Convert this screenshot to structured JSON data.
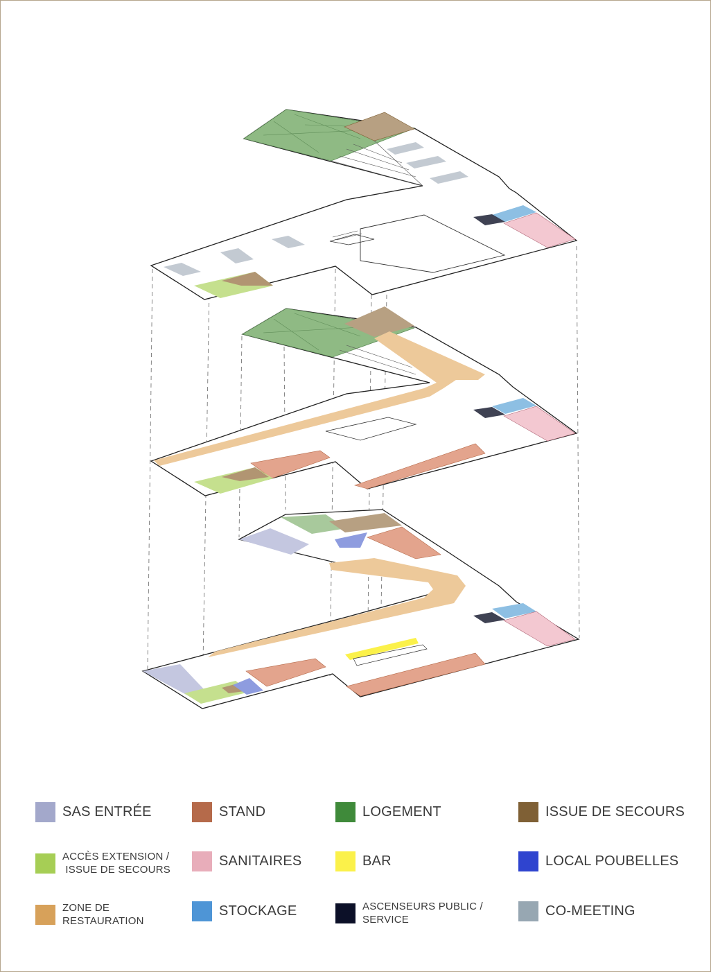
{
  "legend": {
    "sas_entree": {
      "label": "SAS ENTRÉE",
      "color": "#a3a8cb"
    },
    "stand": {
      "label": "STAND",
      "color": "#b56a4a"
    },
    "logement": {
      "label": "LOGEMENT",
      "color": "#3f8a3a"
    },
    "issue_secours": {
      "label": "ISSUE DE SECOURS",
      "color": "#7f6035"
    },
    "acces_extension": {
      "label": "ACCÈS EXTENSION /\n ISSUE DE SECOURS",
      "color": "#a6ce55"
    },
    "sanitaires": {
      "label": "SANITAIRES",
      "color": "#e8adba"
    },
    "bar": {
      "label": "BAR",
      "color": "#fbf14a"
    },
    "local_poubelles": {
      "label": "LOCAL POUBELLES",
      "color": "#2f44cf"
    },
    "zone_restauration": {
      "label": "ZONE DE\nRESTAURATION",
      "color": "#d7a15a"
    },
    "stockage": {
      "label": "STOCKAGE",
      "color": "#4e95d6"
    },
    "ascenseurs": {
      "label": "ASCENSEURS PUBLIC /\nSERVICE",
      "color": "#0c1028"
    },
    "co_meeting": {
      "label": "CO-MEETING",
      "color": "#97a7b2"
    }
  }
}
